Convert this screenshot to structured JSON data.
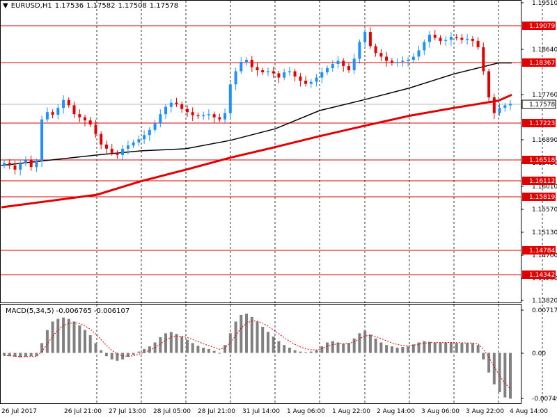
{
  "header": {
    "symbol": "EURUSD,H1",
    "open": "1.17536",
    "high": "1.17582",
    "low": "1.17508",
    "close": "1.17578"
  },
  "macd": {
    "label": "MACD(5,34,5)",
    "value_main": "-0.006765",
    "value_signal": "-0.006107"
  },
  "colors": {
    "background": "#ffffff",
    "grid": "#000000",
    "candle_up": "#1e90ff",
    "candle_down": "#e00000",
    "ma_slow": "#e00000",
    "ma_fast": "#000000",
    "level_line": "#e00000",
    "macd_hist": "#808080",
    "macd_signal": "#e00000"
  },
  "chart_data": [
    {
      "type": "candlestick",
      "symbol": "EURUSD",
      "timeframe": "H1",
      "ylim": [
        1.1382,
        1.1951
      ],
      "y_ticks": [
        "1.19510",
        "1.18640",
        "1.17760",
        "1.16890",
        "1.16450",
        "1.16010",
        "1.15570",
        "1.15130",
        "1.14700",
        "1.14260",
        "1.13820"
      ],
      "x_ticks": [
        "26 Jul 2017",
        "26 Jul 21:00",
        "27 Jul 13:00",
        "28 Jul 05:00",
        "28 Jul 21:00",
        "31 Jul 14:00",
        "1 Aug 06:00",
        "1 Aug 22:00",
        "2 Aug 14:00",
        "3 Aug 06:00",
        "3 Aug 22:00",
        "4 Aug 14:00"
      ],
      "levels": [
        "1.19079",
        "1.18367",
        "1.17223",
        "1.16518",
        "1.16112",
        "1.15819",
        "1.14784",
        "1.14342"
      ],
      "current_price": "1.17578",
      "close_path": [
        1.1645,
        1.164,
        1.1632,
        1.1644,
        1.165,
        1.1637,
        1.1648,
        1.1728,
        1.1742,
        1.1737,
        1.175,
        1.1765,
        1.1755,
        1.1738,
        1.1732,
        1.1726,
        1.1718,
        1.17,
        1.168,
        1.1672,
        1.1664,
        1.166,
        1.1672,
        1.1678,
        1.1684,
        1.169,
        1.1698,
        1.1708,
        1.172,
        1.1738,
        1.1752,
        1.176,
        1.1757,
        1.1748,
        1.1742,
        1.1736,
        1.1734,
        1.1736,
        1.1738,
        1.1732,
        1.1728,
        1.174,
        1.1795,
        1.182,
        1.1838,
        1.1842,
        1.1828,
        1.1822,
        1.1818,
        1.182,
        1.1816,
        1.1808,
        1.1818,
        1.182,
        1.181,
        1.1802,
        1.1796,
        1.18,
        1.1808,
        1.1818,
        1.1826,
        1.1834,
        1.184,
        1.183,
        1.1822,
        1.1844,
        1.1876,
        1.1895,
        1.1868,
        1.1855,
        1.1848,
        1.184,
        1.1836,
        1.1838,
        1.184,
        1.1842,
        1.1848,
        1.186,
        1.1876,
        1.189,
        1.1884,
        1.1878,
        1.188,
        1.1886,
        1.1884,
        1.188,
        1.1882,
        1.1878,
        1.1866,
        1.182,
        1.177,
        1.174,
        1.175,
        1.1755,
        1.1758
      ],
      "ma_slow_path": [
        1.156,
        1.1584,
        1.161,
        1.1632,
        1.1655,
        1.1675,
        1.1696,
        1.1716,
        1.1735,
        1.175,
        1.1764,
        1.1775
      ],
      "ma_fast_path": [
        1.164,
        1.166,
        1.1668,
        1.1672,
        1.1688,
        1.171,
        1.1745,
        1.1766,
        1.1788,
        1.1815,
        1.1836,
        1.1836
      ]
    },
    {
      "type": "bar",
      "title": "MACD(5,34,5)",
      "ylim": [
        -0.007494,
        0.007176
      ],
      "y_ticks": [
        "0.007176",
        "0.00",
        "-0.007494"
      ],
      "values": [
        -0.0004,
        -0.0005,
        -0.0006,
        -0.0007,
        -0.0006,
        -0.0005,
        -0.0005,
        0.0015,
        0.0035,
        0.0048,
        0.0052,
        0.0054,
        0.0052,
        0.0048,
        0.0042,
        0.0035,
        0.0027,
        0.0015,
        0.0004,
        -0.0005,
        -0.001,
        -0.0012,
        -0.001,
        -0.0006,
        -0.0003,
        0.0002,
        0.0006,
        0.001,
        0.0016,
        0.0024,
        0.003,
        0.0032,
        0.0029,
        0.0025,
        0.002,
        0.0015,
        0.0011,
        0.0008,
        0.0006,
        0.0003,
        0.0,
        0.0012,
        0.003,
        0.0048,
        0.0058,
        0.006,
        0.0055,
        0.0048,
        0.004,
        0.0032,
        0.0025,
        0.0018,
        0.0012,
        0.0008,
        0.0004,
        0.0002,
        0.0001,
        0.0002,
        0.0004,
        0.001,
        0.0016,
        0.0018,
        0.0016,
        0.0014,
        0.0015,
        0.0022,
        0.003,
        0.0034,
        0.0028,
        0.0022,
        0.0016,
        0.0012,
        0.001,
        0.0008,
        0.0009,
        0.001,
        0.0013,
        0.0016,
        0.0018,
        0.0017,
        0.0016,
        0.0016,
        0.0016,
        0.0016,
        0.0015,
        0.0015,
        0.0015,
        0.0015,
        0.0012,
        -0.001,
        -0.003,
        -0.0048,
        -0.006,
        -0.0068,
        -0.007
      ]
    }
  ]
}
